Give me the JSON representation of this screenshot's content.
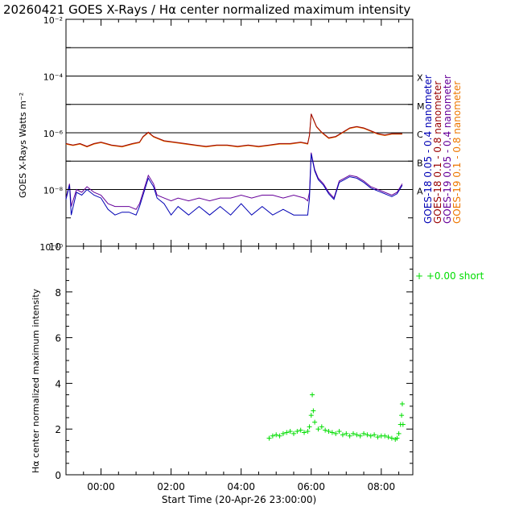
{
  "title": "20260421 GOES X-Rays / Hα center normalized maximum intensity",
  "xlabel": "Start Time (20-Apr-26 23:00:00)",
  "colors": {
    "goes18_short": "#0000b4",
    "goes18_long": "#990000",
    "goes19_short": "#660099",
    "goes19_long": "#ee7700",
    "halpha": "#00dd00"
  },
  "chart_data": [
    {
      "type": "line",
      "title": "GOES X-Rays",
      "ylabel": "GOES X-Rays Watts m⁻²",
      "yscale": "log",
      "ylim_exp": [
        -10,
        -2
      ],
      "ytick_labels": [
        {
          "exp": -2,
          "text": "10⁻²"
        },
        {
          "exp": -4,
          "text": "10⁻⁴"
        },
        {
          "exp": -6,
          "text": "10⁻⁶"
        },
        {
          "exp": -8,
          "text": "10⁻⁸"
        },
        {
          "exp": -10,
          "text": "10⁻¹⁰"
        }
      ],
      "flare_levels": [
        {
          "class": "X",
          "exp": -4
        },
        {
          "class": "M",
          "exp": -5
        },
        {
          "class": "C",
          "exp": -6
        },
        {
          "class": "B",
          "exp": -7
        },
        {
          "class": "A",
          "exp": -8
        }
      ],
      "xlim_hours": [
        -1,
        8.9
      ],
      "xtick_labels": [
        "00:00",
        "02:00",
        "04:00",
        "06:00",
        "08:00"
      ],
      "xtick_hours": [
        0,
        2,
        4,
        6,
        8
      ],
      "legend": [
        {
          "text": "GOES-18 0.05 - 0.4 nanometer",
          "color_key": "goes18_short"
        },
        {
          "text": "GOES-18 0.1 - 0.8 nanometer",
          "color_key": "goes18_long"
        },
        {
          "text": "GOES-19 0.05 - 0.4 nanometer",
          "color_key": "goes19_short"
        },
        {
          "text": "GOES-19 0.1 - 0.8 nanometer",
          "color_key": "goes19_long"
        }
      ],
      "series": [
        {
          "name": "GOES-19 0.1-0.8 nm",
          "color_key": "goes19_long",
          "x": [
            -1,
            -0.8,
            -0.6,
            -0.4,
            -0.2,
            0,
            0.3,
            0.6,
            0.9,
            1.1,
            1.2,
            1.35,
            1.5,
            1.8,
            2.1,
            2.4,
            2.7,
            3,
            3.3,
            3.6,
            3.9,
            4.2,
            4.5,
            4.8,
            5.1,
            5.4,
            5.7,
            5.9,
            5.95,
            6.0,
            6.05,
            6.15,
            6.3,
            6.5,
            6.7,
            6.9,
            7.1,
            7.3,
            7.5,
            7.7,
            7.9,
            8.1,
            8.3,
            8.6
          ],
          "log_y": [
            -6.4,
            -6.45,
            -6.4,
            -6.5,
            -6.4,
            -6.35,
            -6.45,
            -6.5,
            -6.4,
            -6.35,
            -6.15,
            -6.0,
            -6.15,
            -6.3,
            -6.35,
            -6.4,
            -6.45,
            -6.5,
            -6.45,
            -6.45,
            -6.5,
            -6.45,
            -6.5,
            -6.45,
            -6.4,
            -6.4,
            -6.35,
            -6.4,
            -6.1,
            -5.35,
            -5.5,
            -5.8,
            -6.0,
            -6.2,
            -6.15,
            -6.0,
            -5.85,
            -5.8,
            -5.85,
            -5.95,
            -6.05,
            -6.1,
            -6.05,
            -6.05
          ]
        },
        {
          "name": "GOES-18 0.1-0.8 nm",
          "color_key": "goes18_long",
          "x": [
            -1,
            -0.8,
            -0.6,
            -0.4,
            -0.2,
            0,
            0.3,
            0.6,
            0.9,
            1.1,
            1.2,
            1.35,
            1.5,
            1.8,
            2.1,
            2.4,
            2.7,
            3,
            3.3,
            3.6,
            3.9,
            4.2,
            4.5,
            4.8,
            5.1,
            5.4,
            5.7,
            5.9,
            5.95,
            6.0,
            6.05,
            6.15,
            6.3,
            6.5,
            6.7,
            6.9,
            7.1,
            7.3,
            7.5,
            7.7,
            7.9,
            8.1,
            8.3,
            8.6
          ],
          "log_y": [
            -6.38,
            -6.43,
            -6.38,
            -6.48,
            -6.38,
            -6.33,
            -6.43,
            -6.48,
            -6.38,
            -6.33,
            -6.13,
            -5.98,
            -6.13,
            -6.28,
            -6.33,
            -6.38,
            -6.43,
            -6.48,
            -6.43,
            -6.43,
            -6.48,
            -6.43,
            -6.48,
            -6.43,
            -6.38,
            -6.38,
            -6.33,
            -6.38,
            -6.08,
            -5.33,
            -5.48,
            -5.78,
            -5.98,
            -6.18,
            -6.13,
            -5.98,
            -5.83,
            -5.78,
            -5.83,
            -5.93,
            -6.03,
            -6.08,
            -6.03,
            -6.03
          ]
        },
        {
          "name": "GOES-19 0.05-0.4 nm",
          "color_key": "goes19_short",
          "x": [
            -1,
            -0.9,
            -0.85,
            -0.7,
            -0.55,
            -0.4,
            -0.2,
            0,
            0.2,
            0.4,
            0.6,
            0.8,
            1.0,
            1.1,
            1.2,
            1.35,
            1.5,
            1.6,
            1.8,
            2.0,
            2.2,
            2.5,
            2.8,
            3.1,
            3.4,
            3.7,
            4.0,
            4.3,
            4.6,
            4.9,
            5.2,
            5.5,
            5.8,
            5.9,
            5.95,
            6.0,
            6.05,
            6.1,
            6.2,
            6.35,
            6.5,
            6.65,
            6.8,
            6.95,
            7.1,
            7.3,
            7.5,
            7.7,
            7.9,
            8.1,
            8.3,
            8.45,
            8.6
          ],
          "log_y": [
            -8.3,
            -7.8,
            -8.6,
            -8.0,
            -8.1,
            -7.9,
            -8.1,
            -8.2,
            -8.5,
            -8.6,
            -8.6,
            -8.6,
            -8.7,
            -8.5,
            -8.1,
            -7.5,
            -7.8,
            -8.2,
            -8.3,
            -8.4,
            -8.3,
            -8.4,
            -8.3,
            -8.4,
            -8.3,
            -8.3,
            -8.2,
            -8.3,
            -8.2,
            -8.2,
            -8.3,
            -8.2,
            -8.3,
            -8.4,
            -8.1,
            -6.7,
            -7.0,
            -7.3,
            -7.6,
            -7.8,
            -8.1,
            -8.3,
            -7.7,
            -7.6,
            -7.5,
            -7.55,
            -7.7,
            -7.9,
            -8.0,
            -8.1,
            -8.2,
            -8.1,
            -7.8
          ]
        },
        {
          "name": "GOES-18 0.05-0.4 nm",
          "color_key": "goes18_short",
          "x": [
            -1,
            -0.9,
            -0.85,
            -0.7,
            -0.55,
            -0.4,
            -0.2,
            0,
            0.2,
            0.4,
            0.6,
            0.8,
            1.0,
            1.1,
            1.2,
            1.35,
            1.5,
            1.6,
            1.8,
            2.0,
            2.2,
            2.5,
            2.8,
            3.1,
            3.4,
            3.7,
            4.0,
            4.3,
            4.6,
            4.9,
            5.2,
            5.5,
            5.8,
            5.9,
            5.95,
            6.0,
            6.05,
            6.1,
            6.2,
            6.35,
            6.5,
            6.65,
            6.8,
            6.95,
            7.1,
            7.3,
            7.5,
            7.7,
            7.9,
            8.1,
            8.3,
            8.45,
            8.6
          ],
          "log_y": [
            -8.35,
            -7.85,
            -8.9,
            -8.1,
            -8.2,
            -8.0,
            -8.2,
            -8.3,
            -8.7,
            -8.9,
            -8.8,
            -8.8,
            -8.9,
            -8.6,
            -8.2,
            -7.6,
            -7.9,
            -8.3,
            -8.5,
            -8.9,
            -8.6,
            -8.9,
            -8.6,
            -8.9,
            -8.6,
            -8.9,
            -8.5,
            -8.9,
            -8.6,
            -8.9,
            -8.7,
            -8.9,
            -8.9,
            -8.9,
            -8.3,
            -6.75,
            -7.05,
            -7.35,
            -7.65,
            -7.85,
            -8.15,
            -8.35,
            -7.75,
            -7.65,
            -7.55,
            -7.6,
            -7.75,
            -7.95,
            -8.05,
            -8.15,
            -8.25,
            -8.15,
            -7.85
          ]
        }
      ]
    },
    {
      "type": "scatter",
      "ylabel": "Hα center normalized maximum intensity",
      "ylim": [
        0,
        10
      ],
      "ytick_labels": [
        "0",
        "2",
        "4",
        "6",
        "8",
        "10"
      ],
      "ytick_values": [
        0,
        2,
        4,
        6,
        8,
        10
      ],
      "marker": "+",
      "color_key": "halpha",
      "annotation": "+  +0.00 short",
      "x": [
        4.8,
        4.9,
        5.0,
        5.1,
        5.2,
        5.3,
        5.4,
        5.5,
        5.6,
        5.7,
        5.8,
        5.9,
        5.95,
        6.0,
        6.03,
        6.06,
        6.1,
        6.2,
        6.3,
        6.4,
        6.5,
        6.6,
        6.7,
        6.8,
        6.9,
        7.0,
        7.1,
        7.2,
        7.3,
        7.4,
        7.5,
        7.6,
        7.7,
        7.8,
        7.9,
        8.0,
        8.1,
        8.2,
        8.3,
        8.4,
        8.45,
        8.5,
        8.55,
        8.58,
        8.6,
        8.62
      ],
      "y": [
        1.6,
        1.7,
        1.75,
        1.7,
        1.8,
        1.85,
        1.9,
        1.8,
        1.9,
        1.95,
        1.85,
        1.9,
        2.1,
        2.6,
        3.5,
        2.8,
        2.3,
        2.0,
        2.1,
        1.95,
        1.9,
        1.85,
        1.8,
        1.9,
        1.75,
        1.8,
        1.7,
        1.8,
        1.75,
        1.7,
        1.8,
        1.75,
        1.7,
        1.75,
        1.65,
        1.7,
        1.7,
        1.65,
        1.6,
        1.55,
        1.6,
        1.8,
        2.2,
        2.6,
        3.1,
        2.2
      ]
    }
  ]
}
